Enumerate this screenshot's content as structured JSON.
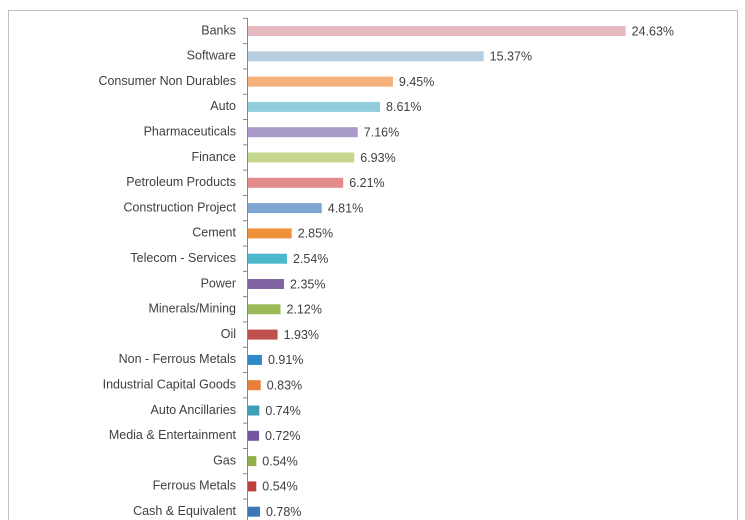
{
  "chart_data": {
    "type": "barh",
    "categories": [
      "Banks",
      "Software",
      "Consumer Non Durables",
      "Auto",
      "Pharmaceuticals",
      "Finance",
      "Petroleum Products",
      "Construction Project",
      "Cement",
      "Telecom - Services",
      "Power",
      "Minerals/Mining",
      "Oil",
      "Non - Ferrous Metals",
      "Industrial Capital Goods",
      "Auto Ancillaries",
      "Media & Entertainment",
      "Gas",
      "Ferrous Metals",
      "Cash & Equivalent"
    ],
    "values": [
      24.63,
      15.37,
      9.45,
      8.61,
      7.16,
      6.93,
      6.21,
      4.81,
      2.85,
      2.54,
      2.35,
      2.12,
      1.93,
      0.91,
      0.83,
      0.74,
      0.72,
      0.54,
      0.54,
      0.78
    ],
    "value_labels": [
      "24.63%",
      "15.37%",
      "9.45%",
      "8.61%",
      "7.16%",
      "6.93%",
      "6.21%",
      "4.81%",
      "2.85%",
      "2.54%",
      "2.35%",
      "2.12%",
      "1.93%",
      "0.91%",
      "0.83%",
      "0.74%",
      "0.72%",
      "0.54%",
      "0.54%",
      "0.78%"
    ],
    "colors": [
      "#e6b9c0",
      "#b9cde0",
      "#f5b07a",
      "#92cddc",
      "#a99bc9",
      "#c6d88f",
      "#e38b8b",
      "#7fa6d3",
      "#f0923a",
      "#4bb8cc",
      "#8064a2",
      "#9bbb59",
      "#c0504d",
      "#2e8bc8",
      "#e8803a",
      "#3ea1b5",
      "#7356a0",
      "#92b04a",
      "#c0403c",
      "#3c78b5"
    ],
    "xlim": [
      0,
      30
    ]
  }
}
